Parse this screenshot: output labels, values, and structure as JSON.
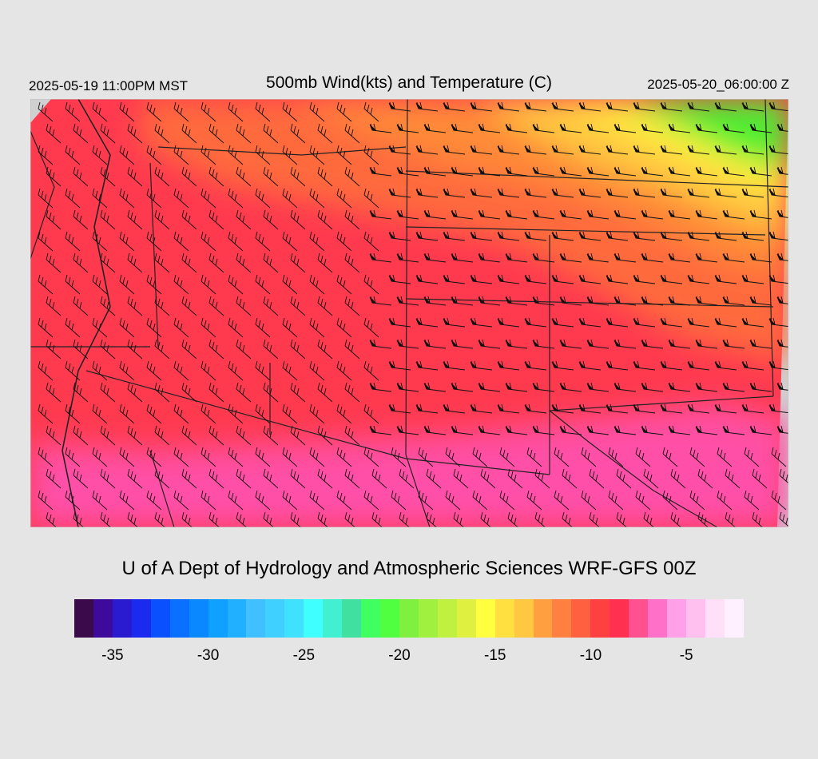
{
  "header": {
    "local_time": "2025-05-19 11:00PM MST",
    "title": "500mb Wind(kts) and Temperature (C)",
    "valid_time": "2025-05-20_06:00:00 Z"
  },
  "footer": {
    "credit": "U of A Dept of Hydrology and Atmospheric Sciences WRF-GFS 00Z"
  },
  "colorbar": {
    "colors": [
      "#3a0a4a",
      "#3d0a9c",
      "#2a1ad0",
      "#1a2aee",
      "#0a50ff",
      "#0a70ff",
      "#0a88ff",
      "#10a0ff",
      "#20b0ff",
      "#40c0ff",
      "#40d0ff",
      "#40e0ff",
      "#40ffff",
      "#40f0d0",
      "#40e0a0",
      "#40ff60",
      "#50ff40",
      "#80f040",
      "#a0f040",
      "#c0f040",
      "#e0f040",
      "#ffff40",
      "#ffe040",
      "#ffc840",
      "#ffa040",
      "#ff8040",
      "#ff6040",
      "#ff4040",
      "#ff3050",
      "#ff5090",
      "#ff70c8",
      "#ffa0e8",
      "#ffc0f0",
      "#ffe0f8",
      "#fff0ff"
    ],
    "tick_labels": [
      "-35",
      "-30",
      "-25",
      "-20",
      "-15",
      "-10",
      "-5"
    ],
    "tick_values": [
      -35,
      -30,
      -25,
      -20,
      -15,
      -10,
      -5
    ],
    "min": -37,
    "max": -2
  },
  "map": {
    "dominant_color": "#ff3a4f",
    "north_color": "#ff7a3a",
    "ne_cold_color": "#50ee30",
    "ne_yellow_color": "#ffee40",
    "south_color": "#ff50a0",
    "background_gray": "#d0d0d0"
  }
}
